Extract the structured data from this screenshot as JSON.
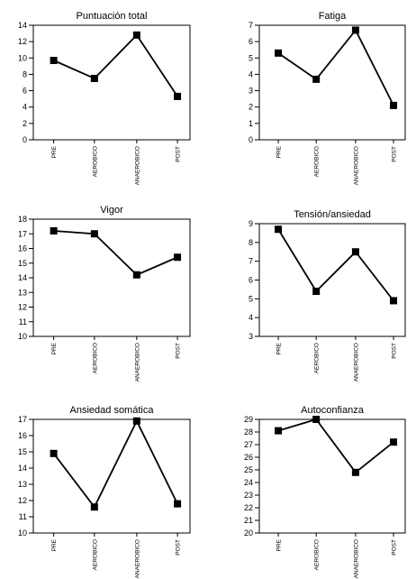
{
  "chart_data": [
    {
      "type": "line",
      "title": "Puntuación total",
      "categories": [
        "PRE",
        "AEROBICO",
        "ANAEROBICO",
        "POST"
      ],
      "values": [
        9.7,
        7.5,
        12.8,
        5.3
      ],
      "ylim": [
        0,
        14
      ],
      "yticks": [
        0,
        2,
        4,
        6,
        8,
        10,
        12,
        14
      ],
      "grid": false
    },
    {
      "type": "line",
      "title": "Fatiga",
      "categories": [
        "PRE",
        "AEROBICO",
        "ANAEROBICO",
        "POST"
      ],
      "values": [
        5.3,
        3.7,
        6.7,
        2.1
      ],
      "ylim": [
        0,
        7
      ],
      "yticks": [
        0,
        1,
        2,
        3,
        4,
        5,
        6,
        7
      ],
      "grid": false
    },
    {
      "type": "line",
      "title": "Vigor",
      "categories": [
        "PRE",
        "AEROBICO",
        "ANAEROBICO",
        "POST"
      ],
      "values": [
        17.2,
        17.0,
        14.2,
        15.4
      ],
      "ylim": [
        10,
        18
      ],
      "yticks": [
        10,
        11,
        12,
        13,
        14,
        15,
        16,
        17,
        18
      ],
      "grid": false
    },
    {
      "type": "line",
      "title": "Tensión/ansiedad",
      "categories": [
        "PRE",
        "AEROBICO",
        "ANAEROBICO",
        "POST"
      ],
      "values": [
        8.7,
        5.4,
        7.5,
        4.9
      ],
      "ylim": [
        3,
        9
      ],
      "yticks": [
        3,
        4,
        5,
        6,
        7,
        8,
        9
      ],
      "grid": false
    },
    {
      "type": "line",
      "title": "Ansiedad somática",
      "categories": [
        "PRE",
        "AEROBICO",
        "ANAEROBICO",
        "POST"
      ],
      "values": [
        14.9,
        11.6,
        16.9,
        11.8
      ],
      "ylim": [
        10,
        17
      ],
      "yticks": [
        10,
        11,
        12,
        13,
        14,
        15,
        16,
        17
      ],
      "grid": false
    },
    {
      "type": "line",
      "title": "Autoconfianza",
      "categories": [
        "PRE",
        "AEROBICO",
        "ANAEROBICO",
        "POST"
      ],
      "values": [
        28.1,
        29.0,
        24.8,
        27.2
      ],
      "ylim": [
        20,
        29
      ],
      "yticks": [
        20,
        21,
        22,
        23,
        24,
        25,
        26,
        27,
        28,
        29
      ],
      "grid": false
    }
  ]
}
